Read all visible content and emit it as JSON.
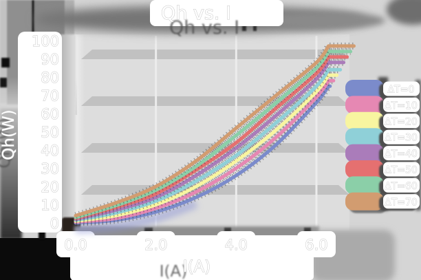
{
  "chart_data": {
    "type": "line",
    "title": "Qh vs. I",
    "xlabel": "I(A)",
    "ylabel": "Qh(W)",
    "xlim": [
      0.0,
      6.6
    ],
    "ylim": [
      0,
      100
    ],
    "x_ticks": [
      "0.0",
      "2.0",
      "4.0",
      "6.0"
    ],
    "y_ticks": [
      "0",
      "10",
      "20",
      "30",
      "40",
      "50",
      "60",
      "70",
      "80",
      "90",
      "100"
    ],
    "grid": "horizontal",
    "legend_position": "right",
    "series": [
      {
        "name": "ΔT=0",
        "color": "#7b8bcb",
        "points": [
          [
            0,
            0
          ],
          [
            1,
            1.5
          ],
          [
            2,
            6
          ],
          [
            3,
            14
          ],
          [
            4,
            26
          ],
          [
            5,
            43
          ],
          [
            6,
            66
          ],
          [
            6.3,
            75
          ]
        ]
      },
      {
        "name": "ΔT=10",
        "color": "#e688b3",
        "points": [
          [
            0,
            0.5
          ],
          [
            1,
            2.5
          ],
          [
            2,
            8
          ],
          [
            3,
            17
          ],
          [
            4,
            30
          ],
          [
            5,
            47
          ],
          [
            6,
            69
          ],
          [
            6.3,
            78
          ]
        ]
      },
      {
        "name": "ΔT=20",
        "color": "#f8f5a0",
        "points": [
          [
            0,
            1
          ],
          [
            1,
            4
          ],
          [
            2,
            10
          ],
          [
            3,
            20
          ],
          [
            4,
            34
          ],
          [
            5,
            51
          ],
          [
            6,
            72
          ],
          [
            6.3,
            81
          ]
        ]
      },
      {
        "name": "ΔT=30",
        "color": "#8fd0d8",
        "points": [
          [
            0,
            1.5
          ],
          [
            1,
            5.5
          ],
          [
            2,
            12
          ],
          [
            3,
            23
          ],
          [
            4,
            37
          ],
          [
            5,
            55
          ],
          [
            6,
            75
          ],
          [
            6.3,
            84
          ]
        ]
      },
      {
        "name": "ΔT=40",
        "color": "#aa7cba",
        "points": [
          [
            0,
            2
          ],
          [
            1,
            7
          ],
          [
            2,
            14
          ],
          [
            3,
            26
          ],
          [
            4,
            41
          ],
          [
            5,
            59
          ],
          [
            6,
            79
          ],
          [
            6.3,
            88
          ]
        ]
      },
      {
        "name": "ΔT=50",
        "color": "#e57070",
        "points": [
          [
            0,
            2.5
          ],
          [
            1,
            8.5
          ],
          [
            2,
            16
          ],
          [
            3,
            29
          ],
          [
            4,
            44
          ],
          [
            5,
            63
          ],
          [
            6,
            82
          ],
          [
            6.3,
            91
          ]
        ]
      },
      {
        "name": "ΔT=60",
        "color": "#8bcfa8",
        "points": [
          [
            0,
            3
          ],
          [
            1,
            9.5
          ],
          [
            2,
            18
          ],
          [
            3,
            31
          ],
          [
            4,
            48
          ],
          [
            5,
            66
          ],
          [
            6,
            85
          ],
          [
            6.3,
            94
          ]
        ]
      },
      {
        "name": "ΔT=70",
        "color": "#d29c70",
        "points": [
          [
            0,
            4
          ],
          [
            1,
            11
          ],
          [
            2,
            20
          ],
          [
            3,
            34
          ],
          [
            4,
            52
          ],
          [
            5,
            70
          ],
          [
            6,
            88
          ],
          [
            6.3,
            97
          ]
        ]
      }
    ]
  }
}
